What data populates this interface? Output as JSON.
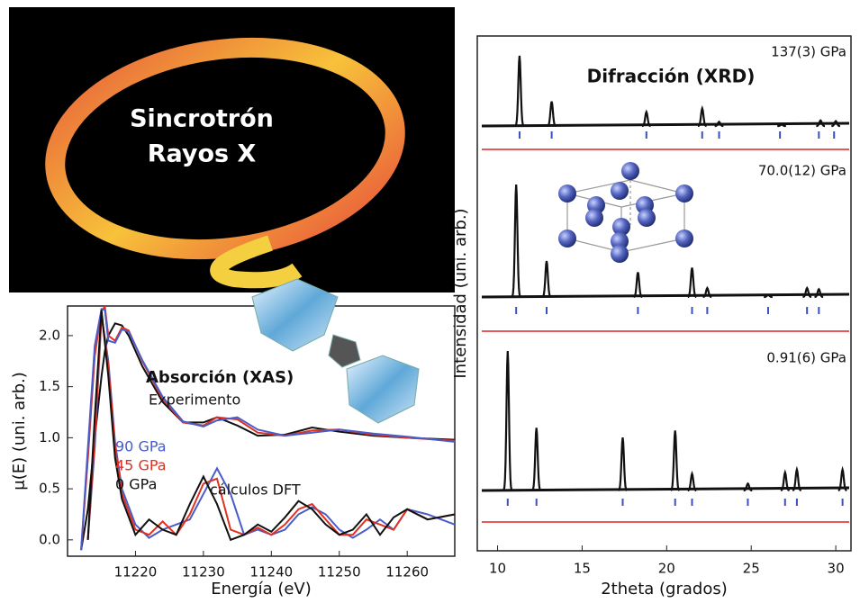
{
  "illustration": {
    "title_lines": [
      "Sincrotrón",
      "Rayos X"
    ]
  },
  "chart_data": [
    {
      "type": "line",
      "xlabel": "Energía (eV)",
      "ylabel": "μ(E) (uni. arb.)",
      "xlim": [
        11210,
        11267
      ],
      "ylim": [
        -0.16,
        2.29
      ],
      "xticks": [
        11220,
        11230,
        11240,
        11250,
        11260
      ],
      "yticks": [
        {
          "value": 0,
          "label": "0.0"
        },
        {
          "value": 0.5,
          "label": "0.5"
        },
        {
          "value": 1,
          "label": "1.0"
        },
        {
          "value": 1.5,
          "label": "1.5"
        },
        {
          "value": 2,
          "label": "2.0"
        }
      ],
      "annotations": [
        "Absorción (XAS)",
        "Experimento",
        "cálculos DFT"
      ],
      "series": [
        {
          "color": "#111111",
          "x": [
            11212,
            11213,
            11214,
            11215,
            11215.5,
            11216,
            11217,
            11218,
            11219,
            11221,
            11224,
            11227,
            11230,
            11232,
            11235,
            11238,
            11242,
            11246,
            11250,
            11255,
            11260,
            11267
          ],
          "values": [
            -0.1,
            0.3,
            1.0,
            1.6,
            1.85,
            2.0,
            2.12,
            2.1,
            2.0,
            1.7,
            1.35,
            1.15,
            1.15,
            1.2,
            1.12,
            1.02,
            1.03,
            1.1,
            1.06,
            1.02,
            1.0,
            0.98
          ]
        },
        {
          "color": "#e03020",
          "x": [
            11212,
            11213,
            11214,
            11215,
            11215.5,
            11216,
            11217,
            11218,
            11219,
            11221,
            11224,
            11227,
            11230,
            11232,
            11235,
            11238,
            11242,
            11246,
            11250,
            11255,
            11260,
            11267
          ],
          "values": [
            -0.1,
            0.8,
            1.8,
            2.25,
            2.28,
            2.0,
            1.95,
            2.08,
            2.05,
            1.75,
            1.38,
            1.15,
            1.12,
            1.2,
            1.18,
            1.05,
            1.02,
            1.07,
            1.08,
            1.03,
            1.0,
            0.97
          ]
        },
        {
          "color": "#4a5cc8",
          "x": [
            11212,
            11213,
            11214,
            11215,
            11215.5,
            11216,
            11217,
            11218,
            11219,
            11221,
            11224,
            11227,
            11230,
            11232,
            11235,
            11238,
            11242,
            11246,
            11250,
            11255,
            11260,
            11267
          ],
          "values": [
            -0.1,
            0.9,
            1.9,
            2.26,
            2.25,
            1.95,
            1.93,
            2.06,
            2.04,
            1.76,
            1.4,
            1.16,
            1.11,
            1.17,
            1.2,
            1.08,
            1.02,
            1.05,
            1.08,
            1.04,
            1.01,
            0.96
          ]
        },
        {
          "name": "90 GPa",
          "color": "#4a5cc8",
          "x": [
            11213,
            11214,
            11215,
            11216,
            11217,
            11218,
            11220,
            11222,
            11224,
            11226,
            11228,
            11230,
            11232,
            11234,
            11236,
            11238,
            11240,
            11242,
            11244,
            11246,
            11248,
            11250,
            11252,
            11254,
            11256,
            11258,
            11260,
            11263,
            11267
          ],
          "values": [
            0,
            0.9,
            2.2,
            1.75,
            0.95,
            0.5,
            0.15,
            0.02,
            0.1,
            0.15,
            0.2,
            0.45,
            0.7,
            0.45,
            0.05,
            0.1,
            0.05,
            0.1,
            0.25,
            0.32,
            0.25,
            0.1,
            0.02,
            0.1,
            0.2,
            0.1,
            0.3,
            0.25,
            0.15
          ]
        },
        {
          "name": "45 GPa",
          "color": "#e03020",
          "x": [
            11213,
            11214,
            11215,
            11216,
            11217,
            11218,
            11220,
            11222,
            11224,
            11226,
            11228,
            11230,
            11232,
            11234,
            11236,
            11238,
            11240,
            11242,
            11244,
            11246,
            11248,
            11250,
            11252,
            11254,
            11256,
            11258,
            11260,
            11263,
            11267
          ],
          "values": [
            0,
            1.0,
            2.2,
            1.7,
            0.9,
            0.45,
            0.1,
            0.05,
            0.18,
            0.05,
            0.25,
            0.55,
            0.6,
            0.1,
            0.05,
            0.12,
            0.05,
            0.15,
            0.3,
            0.35,
            0.2,
            0.05,
            0.05,
            0.2,
            0.15,
            0.1,
            0.3,
            0.2,
            0.25
          ]
        },
        {
          "name": "0 GPa",
          "color": "#111111",
          "x": [
            11213,
            11214,
            11215,
            11216,
            11217,
            11218,
            11220,
            11222,
            11224,
            11226,
            11228,
            11230,
            11232,
            11234,
            11236,
            11238,
            11240,
            11242,
            11244,
            11246,
            11248,
            11250,
            11252,
            11254,
            11256,
            11258,
            11260,
            11263,
            11267
          ],
          "values": [
            0,
            1.2,
            2.25,
            1.6,
            0.8,
            0.4,
            0.05,
            0.2,
            0.1,
            0.05,
            0.35,
            0.62,
            0.35,
            0.0,
            0.05,
            0.15,
            0.08,
            0.22,
            0.38,
            0.3,
            0.15,
            0.05,
            0.1,
            0.25,
            0.05,
            0.22,
            0.3,
            0.2,
            0.25
          ]
        }
      ]
    },
    {
      "type": "diffraction",
      "title": "Difracción (XRD)",
      "xlabel": "2theta (grados)",
      "ylabel": "Intensidad (uni. arb.)",
      "xlim": [
        8.8,
        30.9
      ],
      "xticks": [
        10,
        15,
        20,
        25,
        30
      ],
      "reflection_color": "#3a4fc0",
      "difference_color": "#e02020",
      "series": [
        {
          "name": "137(3) GPa",
          "x": [
            11.3,
            13.2,
            18.8,
            22.1,
            23.1,
            26.8,
            29.1,
            30.0
          ],
          "values": [
            1.0,
            0.35,
            0.2,
            0.25,
            0.06,
            0.02,
            0.08,
            0.07
          ],
          "reflections": [
            11.3,
            13.2,
            18.8,
            22.1,
            23.1,
            26.7,
            29.0,
            29.9
          ]
        },
        {
          "name": "70.0(12) GPa",
          "x": [
            11.1,
            12.9,
            18.3,
            21.5,
            22.4,
            26.0,
            28.3,
            29.0
          ],
          "values": [
            1.0,
            0.32,
            0.22,
            0.26,
            0.08,
            0.02,
            0.08,
            0.07
          ],
          "reflections": [
            11.1,
            12.9,
            18.3,
            21.5,
            22.4,
            26.0,
            28.3,
            29.0
          ]
        },
        {
          "name": "0.91(6) GPa",
          "x": [
            10.6,
            12.3,
            17.4,
            20.5,
            21.5,
            24.8,
            27.0,
            27.7,
            30.4
          ],
          "values": [
            1.0,
            0.45,
            0.38,
            0.43,
            0.12,
            0.05,
            0.13,
            0.15,
            0.15
          ],
          "reflections": [
            10.6,
            12.3,
            17.4,
            20.5,
            21.5,
            24.8,
            27.0,
            27.7,
            30.4
          ]
        }
      ]
    }
  ]
}
